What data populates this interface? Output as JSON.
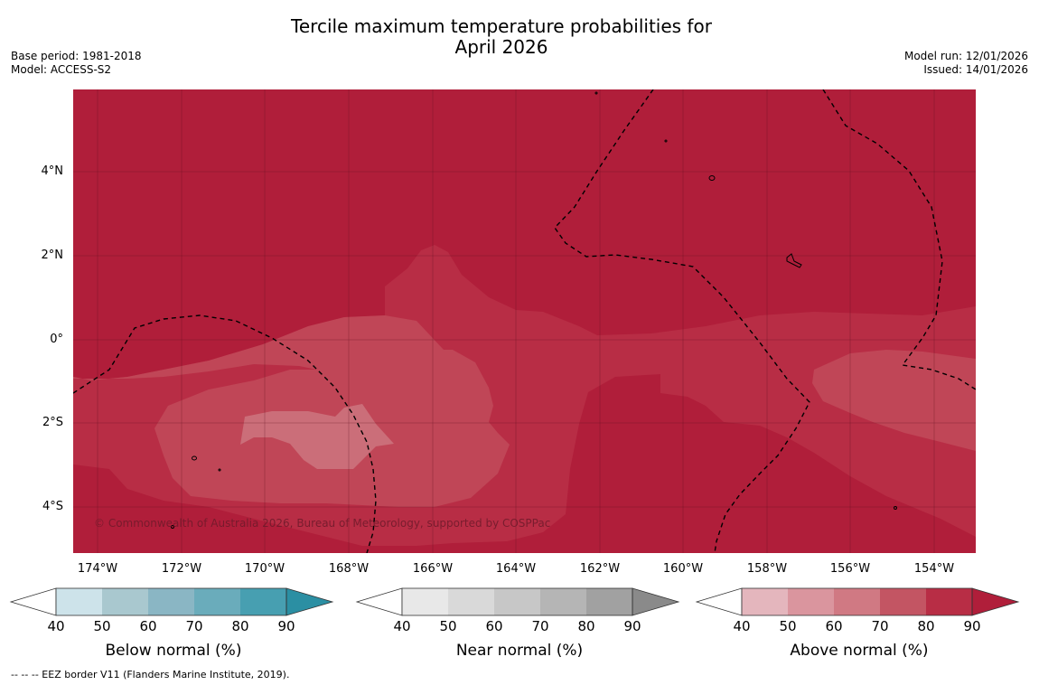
{
  "title_line1": "Tercile maximum temperature probabilities for",
  "title_line2": "April 2026",
  "base_period": "Base period: 1981-2018",
  "model": "Model: ACCESS-S2",
  "model_run": "Model run: 12/01/2026",
  "issued": "Issued: 14/01/2026",
  "copyright": "© Commonwealth of Australia 2026, Bureau of Meteorology, supported by COSPPac",
  "footer": "--  --  -- EEZ border V11 (Flanders Marine Institute, 2019).",
  "lat_labels": [
    "4°N",
    "2°N",
    "0°",
    "2°S",
    "4°S"
  ],
  "lon_labels": [
    "174°W",
    "172°W",
    "170°W",
    "168°W",
    "166°W",
    "164°W",
    "162°W",
    "160°W",
    "158°W",
    "156°W",
    "154°W"
  ],
  "legends": [
    {
      "title": "Below normal (%)",
      "ticks": [
        "40",
        "50",
        "60",
        "70",
        "80",
        "90"
      ],
      "colors": [
        "#cde3ea",
        "#a9c8cf",
        "#8ab6c4",
        "#6aacbb",
        "#479fb1",
        "#2b8fa3"
      ]
    },
    {
      "title": "Near normal (%)",
      "ticks": [
        "40",
        "50",
        "60",
        "70",
        "80",
        "90"
      ],
      "colors": [
        "#e8e8e8",
        "#d9d9d9",
        "#c7c7c7",
        "#b5b5b5",
        "#a1a1a1",
        "#8a8a8a"
      ]
    },
    {
      "title": "Above normal (%)",
      "ticks": [
        "40",
        "50",
        "60",
        "70",
        "80",
        "90"
      ],
      "colors": [
        "#e4b6bd",
        "#da959e",
        "#d07983",
        "#c35563",
        "#b82d45",
        "#b01e3a"
      ]
    }
  ],
  "map_colors": {
    "above_90": "#b01e3a",
    "above_80": "#b82d45",
    "above_70": "#c04657",
    "above_60": "#cb6e79"
  }
}
